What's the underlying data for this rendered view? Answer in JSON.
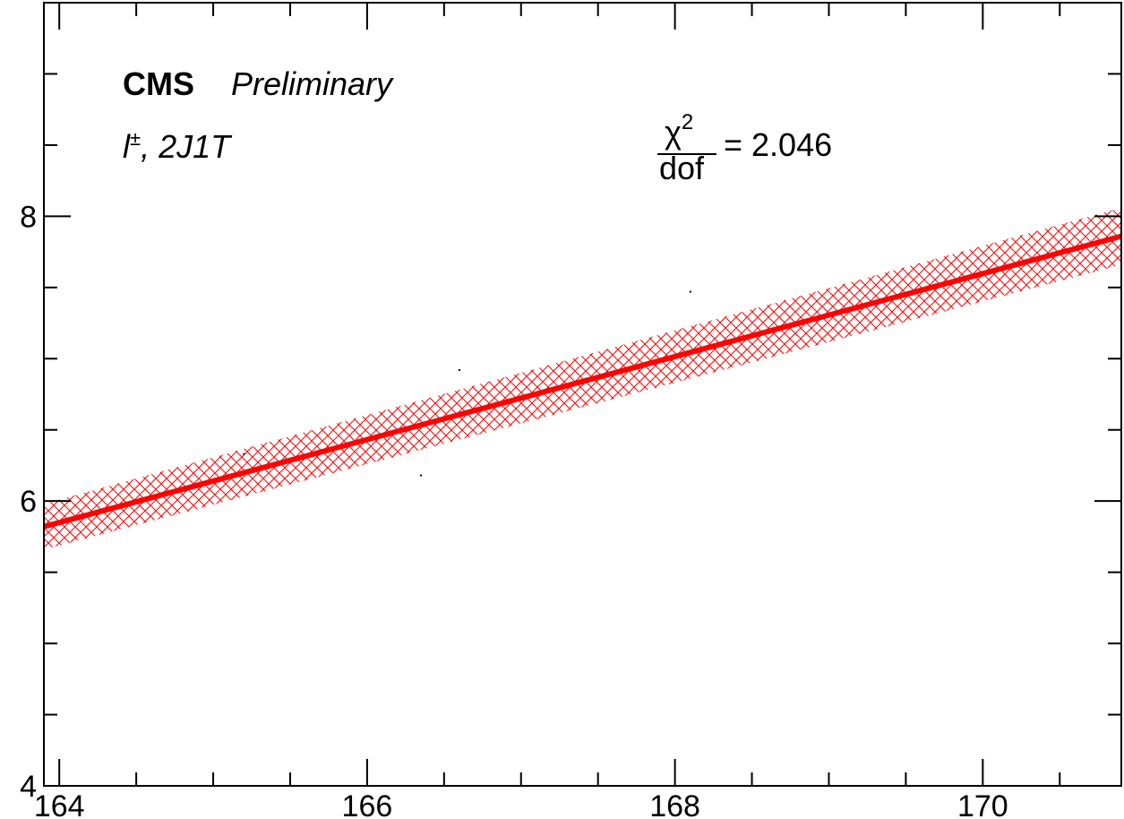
{
  "chart_data": {
    "type": "line",
    "title": "",
    "xlabel": "",
    "ylabel": "",
    "xlim": [
      163.9,
      170.9
    ],
    "ylim": [
      4,
      9.5
    ],
    "x_ticks": [
      164,
      166,
      168,
      170
    ],
    "x_tick_labels": [
      "164",
      "166",
      "168",
      "170"
    ],
    "y_ticks": [
      4,
      6,
      8
    ],
    "y_tick_labels": [
      "4",
      "6",
      "8"
    ],
    "grid": false,
    "legend": "none",
    "series": [
      {
        "x": [
          163.9,
          170.9
        ],
        "y": [
          5.82,
          7.86
        ],
        "band_lower": [
          5.66,
          7.66
        ],
        "band_upper": [
          5.98,
          8.06
        ],
        "color": "#ff0000"
      }
    ],
    "scatter_points": {
      "x": [
        165.2,
        166.35,
        166.6,
        168.1,
        170.9,
        163.9
      ],
      "y": [
        6.33,
        6.18,
        6.92,
        7.47,
        7.62,
        5.62
      ]
    },
    "annotations": {
      "experiment": "CMS",
      "status": "Preliminary",
      "channel": "l±, 2J1T",
      "channel_letter": "l",
      "channel_sup": "±",
      "channel_rest": ", 2J1T",
      "chi2_num": "χ",
      "chi2_sup": "2",
      "chi2_den": "dof",
      "chi2_value": "= 2.046"
    }
  }
}
